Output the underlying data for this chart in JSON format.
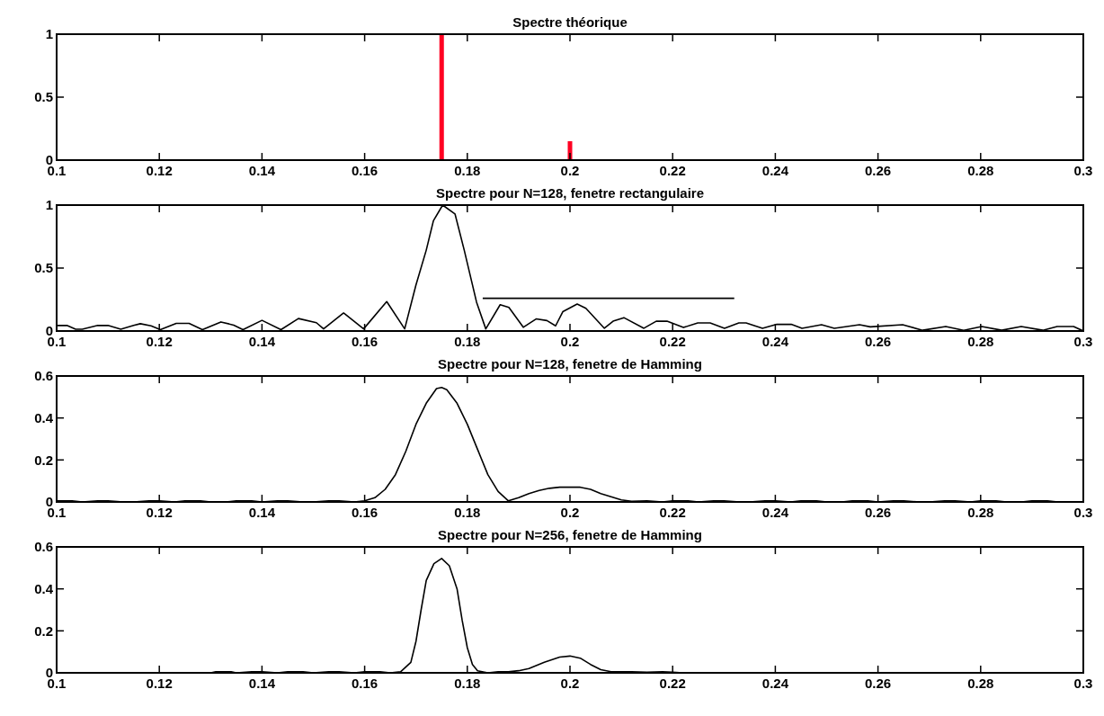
{
  "chart_data": [
    {
      "type": "bar",
      "title": "Spectre théorique",
      "xlim": [
        0.1,
        0.3
      ],
      "ylim": [
        0,
        1
      ],
      "xticks": [
        0.1,
        0.12,
        0.14,
        0.16,
        0.18,
        0.2,
        0.22,
        0.24,
        0.26,
        0.28,
        0.3
      ],
      "yticks": [
        0,
        0.5,
        1
      ],
      "grid": false,
      "series": [
        {
          "color": "#ff0022",
          "x": [
            0.175,
            0.2
          ],
          "values": [
            1,
            0.15
          ]
        }
      ]
    },
    {
      "type": "line",
      "title": "Spectre pour N=128, fenetre rectangulaire",
      "xlim": [
        0.1,
        0.3
      ],
      "ylim": [
        0,
        1
      ],
      "xticks": [
        0.1,
        0.12,
        0.14,
        0.16,
        0.18,
        0.2,
        0.22,
        0.24,
        0.26,
        0.28,
        0.3
      ],
      "yticks": [
        0,
        0.5,
        1
      ],
      "grid": false,
      "series": [
        {
          "color": "#000000",
          "x": [
            0.1,
            0.102,
            0.1037,
            0.105,
            0.108,
            0.11,
            0.1125,
            0.115,
            0.1163,
            0.1184,
            0.1202,
            0.1233,
            0.1258,
            0.1284,
            0.132,
            0.1345,
            0.1363,
            0.14,
            0.1437,
            0.1471,
            0.1506,
            0.152,
            0.1559,
            0.1598,
            0.1643,
            0.1678,
            0.17,
            0.172,
            0.1734,
            0.1752,
            0.1776,
            0.1794,
            0.1818,
            0.1836,
            0.1864,
            0.1881,
            0.1909,
            0.1934,
            0.1955,
            0.1972,
            0.1986,
            0.2014,
            0.2031,
            0.2067,
            0.2084,
            0.2105,
            0.2144,
            0.2168,
            0.2189,
            0.2221,
            0.2249,
            0.2273,
            0.2301,
            0.2329,
            0.2343,
            0.2375,
            0.2403,
            0.2431,
            0.2452,
            0.249,
            0.2515,
            0.2564,
            0.2585,
            0.2648,
            0.2687,
            0.2732,
            0.2767,
            0.2802,
            0.2841,
            0.2879,
            0.2921,
            0.2949,
            0.2981,
            0.3
          ],
          "values": [
            0.044,
            0.044,
            0.014,
            0.014,
            0.044,
            0.044,
            0.014,
            0.044,
            0.058,
            0.041,
            0.011,
            0.061,
            0.061,
            0.011,
            0.072,
            0.047,
            0.011,
            0.085,
            0.011,
            0.099,
            0.066,
            0.017,
            0.143,
            0.017,
            0.234,
            0.017,
            0.366,
            0.642,
            0.876,
            1.0,
            0.93,
            0.642,
            0.229,
            0.017,
            0.209,
            0.187,
            0.03,
            0.096,
            0.083,
            0.041,
            0.153,
            0.214,
            0.18,
            0.022,
            0.078,
            0.106,
            0.022,
            0.078,
            0.078,
            0.028,
            0.064,
            0.064,
            0.022,
            0.064,
            0.064,
            0.022,
            0.053,
            0.053,
            0.022,
            0.05,
            0.022,
            0.05,
            0.033,
            0.05,
            0.006,
            0.036,
            0.006,
            0.036,
            0.006,
            0.036,
            0.006,
            0.036,
            0.036,
            0
          ]
        },
        {
          "color": "#000000",
          "x": [
            0.183,
            0.232
          ],
          "values": [
            0.26,
            0.26
          ]
        }
      ]
    },
    {
      "type": "line",
      "title": "Spectre pour N=128, fenetre de Hamming",
      "xlim": [
        0.1,
        0.3
      ],
      "ylim": [
        0,
        0.6
      ],
      "xticks": [
        0.1,
        0.12,
        0.14,
        0.16,
        0.18,
        0.2,
        0.22,
        0.24,
        0.26,
        0.28,
        0.3
      ],
      "yticks": [
        0,
        0.2,
        0.4,
        0.6
      ],
      "grid": false,
      "series": [
        {
          "color": "#000000",
          "x": [
            0.1,
            0.103,
            0.105,
            0.108,
            0.11,
            0.113,
            0.115,
            0.118,
            0.12,
            0.123,
            0.125,
            0.128,
            0.13,
            0.133,
            0.135,
            0.138,
            0.14,
            0.143,
            0.145,
            0.148,
            0.15,
            0.153,
            0.155,
            0.158,
            0.16,
            0.162,
            0.164,
            0.166,
            0.168,
            0.17,
            0.172,
            0.174,
            0.175,
            0.176,
            0.178,
            0.18,
            0.182,
            0.184,
            0.186,
            0.188,
            0.19,
            0.192,
            0.194,
            0.196,
            0.198,
            0.202,
            0.204,
            0.206,
            0.208,
            0.21,
            0.212,
            0.215,
            0.218,
            0.22,
            0.223,
            0.225,
            0.228,
            0.23,
            0.233,
            0.235,
            0.238,
            0.24,
            0.243,
            0.245,
            0.248,
            0.25,
            0.253,
            0.255,
            0.258,
            0.26,
            0.263,
            0.265,
            0.268,
            0.27,
            0.273,
            0.275,
            0.278,
            0.28,
            0.283,
            0.285,
            0.288,
            0.29,
            0.293,
            0.295,
            0.298,
            0.3
          ],
          "values": [
            0.005,
            0.005,
            0,
            0.005,
            0.005,
            0,
            0,
            0.005,
            0.005,
            0,
            0.005,
            0.005,
            0,
            0,
            0.005,
            0.005,
            0,
            0.005,
            0.005,
            0,
            0,
            0.005,
            0.005,
            0,
            0.005,
            0.02,
            0.06,
            0.13,
            0.24,
            0.37,
            0.47,
            0.54,
            0.545,
            0.535,
            0.47,
            0.37,
            0.25,
            0.13,
            0.05,
            0.005,
            0.02,
            0.04,
            0.055,
            0.065,
            0.07,
            0.07,
            0.06,
            0.04,
            0.025,
            0.01,
            0.003,
            0.005,
            0,
            0.005,
            0.005,
            0,
            0.005,
            0.005,
            0,
            0,
            0.005,
            0.005,
            0,
            0.005,
            0.005,
            0,
            0,
            0.005,
            0.005,
            0,
            0.005,
            0.005,
            0,
            0,
            0.005,
            0.005,
            0,
            0.005,
            0.005,
            0,
            0,
            0.005,
            0.005,
            0,
            0,
            0
          ]
        }
      ]
    },
    {
      "type": "line",
      "title": "Spectre pour N=256, fenetre de Hamming",
      "xlim": [
        0.1,
        0.3
      ],
      "ylim": [
        0,
        0.6
      ],
      "xticks": [
        0.1,
        0.12,
        0.14,
        0.16,
        0.18,
        0.2,
        0.22,
        0.24,
        0.26,
        0.28,
        0.3
      ],
      "yticks": [
        0,
        0.2,
        0.4,
        0.6
      ],
      "grid": false,
      "series": [
        {
          "color": "#000000",
          "x": [
            0.1,
            0.13,
            0.131,
            0.134,
            0.135,
            0.138,
            0.14,
            0.143,
            0.145,
            0.148,
            0.15,
            0.153,
            0.155,
            0.158,
            0.16,
            0.163,
            0.165,
            0.167,
            0.169,
            0.17,
            0.171,
            0.172,
            0.1735,
            0.175,
            0.1765,
            0.178,
            0.179,
            0.18,
            0.181,
            0.182,
            0.184,
            0.186,
            0.188,
            0.19,
            0.192,
            0.195,
            0.198,
            0.2,
            0.202,
            0.204,
            0.206,
            0.208,
            0.21,
            0.212,
            0.215,
            0.218,
            0.22,
            0.222,
            0.3
          ],
          "values": [
            0,
            0,
            0.005,
            0.005,
            0,
            0.005,
            0.005,
            0,
            0.005,
            0.005,
            0,
            0.005,
            0.005,
            0,
            0.005,
            0.005,
            0,
            0.005,
            0.05,
            0.15,
            0.3,
            0.44,
            0.52,
            0.545,
            0.51,
            0.4,
            0.25,
            0.12,
            0.04,
            0.01,
            0,
            0.005,
            0.005,
            0.01,
            0.02,
            0.05,
            0.075,
            0.08,
            0.07,
            0.04,
            0.015,
            0.005,
            0.005,
            0.005,
            0.003,
            0.005,
            0.003,
            0,
            0
          ]
        }
      ]
    }
  ]
}
